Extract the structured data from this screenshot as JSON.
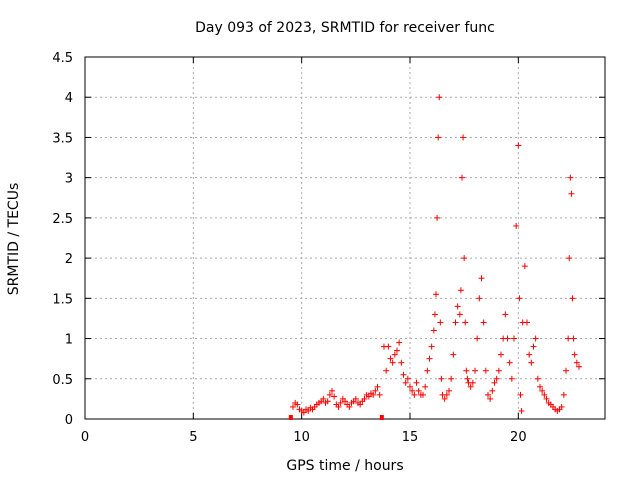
{
  "chart_data": {
    "type": "scatter",
    "title": "Day 093 of 2023, SRMTID for receiver func",
    "xlabel": "GPS time / hours",
    "ylabel": "SRMTID / TECUs",
    "xlim": [
      0,
      24
    ],
    "ylim": [
      0,
      4.5
    ],
    "x_ticks": [
      0,
      5,
      10,
      15,
      20
    ],
    "x_tick_labels": [
      "0",
      "5",
      "10",
      "15",
      "20"
    ],
    "y_ticks": [
      0,
      0.5,
      1,
      1.5,
      2,
      2.5,
      3,
      3.5,
      4,
      4.5
    ],
    "y_tick_labels": [
      "0",
      "0.5",
      "1",
      "1.5",
      "2",
      "2.5",
      "3",
      "3.5",
      "4",
      "4.5"
    ],
    "grid": true,
    "marker": "+",
    "color": "#ff0000",
    "series": [
      {
        "name": "SRMTID",
        "x": [
          9.6,
          9.7,
          9.8,
          9.9,
          10.0,
          10.1,
          10.2,
          10.3,
          10.4,
          10.5,
          10.6,
          10.7,
          10.8,
          10.9,
          11.0,
          11.1,
          11.2,
          11.3,
          11.4,
          11.5,
          11.6,
          11.7,
          11.8,
          11.9,
          12.0,
          12.1,
          12.2,
          12.3,
          12.4,
          12.5,
          12.6,
          12.7,
          12.8,
          12.9,
          13.0,
          13.1,
          13.2,
          13.3,
          13.4,
          13.5,
          13.6,
          13.8,
          13.9,
          14.0,
          14.1,
          14.2,
          14.3,
          14.4,
          14.5,
          14.6,
          14.7,
          14.8,
          14.9,
          15.0,
          15.1,
          15.2,
          15.3,
          15.4,
          15.5,
          15.6,
          15.7,
          15.8,
          15.9,
          16.0,
          16.1,
          16.15,
          16.2,
          16.25,
          16.3,
          16.35,
          16.4,
          16.45,
          16.5,
          16.6,
          16.7,
          16.8,
          16.9,
          17.0,
          17.1,
          17.2,
          17.3,
          17.35,
          17.4,
          17.45,
          17.5,
          17.55,
          17.6,
          17.65,
          17.7,
          17.8,
          17.9,
          18.0,
          18.1,
          18.2,
          18.3,
          18.4,
          18.5,
          18.6,
          18.7,
          18.8,
          18.9,
          19.0,
          19.1,
          19.2,
          19.3,
          19.4,
          19.5,
          19.6,
          19.7,
          19.8,
          19.9,
          20.0,
          20.05,
          20.1,
          20.15,
          20.2,
          20.3,
          20.4,
          20.5,
          20.6,
          20.7,
          20.8,
          20.9,
          21.0,
          21.1,
          21.2,
          21.3,
          21.4,
          21.5,
          21.6,
          21.7,
          21.8,
          21.9,
          22.0,
          22.1,
          22.2,
          22.3,
          22.35,
          22.4,
          22.45,
          22.5,
          22.55,
          22.6,
          22.7,
          22.8
        ],
        "y": [
          0.15,
          0.2,
          0.18,
          0.12,
          0.1,
          0.08,
          0.12,
          0.1,
          0.14,
          0.12,
          0.15,
          0.18,
          0.2,
          0.22,
          0.25,
          0.2,
          0.22,
          0.3,
          0.35,
          0.28,
          0.18,
          0.15,
          0.2,
          0.25,
          0.22,
          0.18,
          0.15,
          0.2,
          0.22,
          0.25,
          0.2,
          0.18,
          0.22,
          0.25,
          0.3,
          0.28,
          0.32,
          0.3,
          0.35,
          0.4,
          0.3,
          0.9,
          0.6,
          0.9,
          0.75,
          0.7,
          0.8,
          0.85,
          0.95,
          0.7,
          0.55,
          0.45,
          0.5,
          0.4,
          0.35,
          0.3,
          0.45,
          0.35,
          0.3,
          0.3,
          0.4,
          0.6,
          0.75,
          0.9,
          1.1,
          1.3,
          1.55,
          2.5,
          3.5,
          4.0,
          1.2,
          0.5,
          0.3,
          0.25,
          0.3,
          0.35,
          0.5,
          0.8,
          1.2,
          1.4,
          1.3,
          1.6,
          3.0,
          3.5,
          2.0,
          1.2,
          0.6,
          0.5,
          0.45,
          0.4,
          0.45,
          0.6,
          1.0,
          1.5,
          1.75,
          1.2,
          0.6,
          0.3,
          0.25,
          0.35,
          0.45,
          0.5,
          0.6,
          0.8,
          1.0,
          1.3,
          1.0,
          0.7,
          0.5,
          1.0,
          2.4,
          3.4,
          1.5,
          0.3,
          0.1,
          1.2,
          1.9,
          1.2,
          0.8,
          0.7,
          0.9,
          1.0,
          0.5,
          0.4,
          0.35,
          0.3,
          0.25,
          0.2,
          0.18,
          0.15,
          0.12,
          0.1,
          0.12,
          0.15,
          0.3,
          0.6,
          1.0,
          2.0,
          3.0,
          2.8,
          1.5,
          1.0,
          0.8,
          0.7,
          0.65
        ]
      }
    ],
    "flagged": {
      "name": "filled squares on axis",
      "x": [
        9.5,
        13.7
      ],
      "y": [
        0,
        0
      ]
    }
  }
}
